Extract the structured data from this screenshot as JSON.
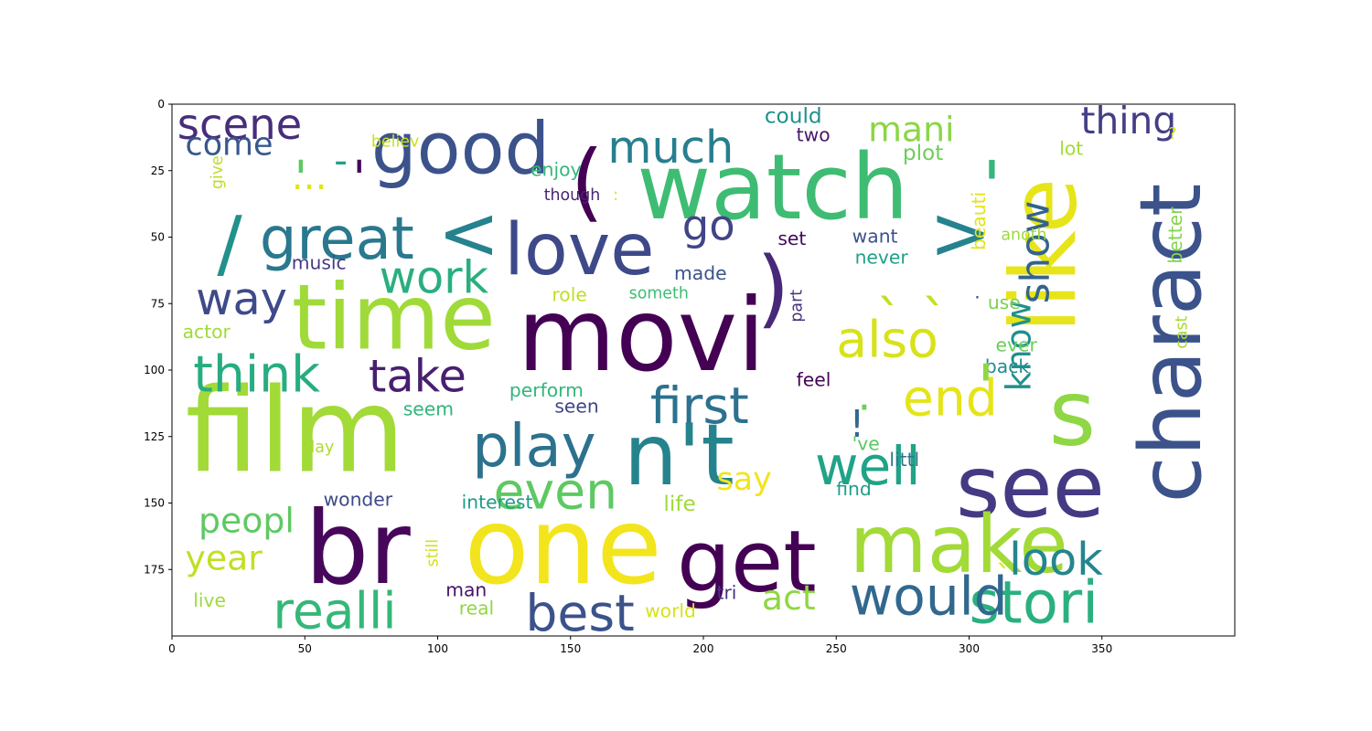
{
  "chart_data": {
    "type": "wordcloud",
    "title": "",
    "xlabel": "",
    "ylabel": "",
    "xlim": [
      0,
      400
    ],
    "ylim": [
      200,
      0
    ],
    "x_ticks": [
      "0",
      "50",
      "100",
      "150",
      "200",
      "250",
      "300",
      "350"
    ],
    "y_ticks": [
      "0",
      "25",
      "50",
      "75",
      "100",
      "125",
      "150",
      "175"
    ],
    "grid": false,
    "words": [
      {
        "text": "film",
        "x": 5,
        "y": 138,
        "size": 44,
        "color": "#a2da37",
        "orient": "h"
      },
      {
        "text": "br",
        "x": 50,
        "y": 180,
        "size": 38,
        "color": "#46075a",
        "orient": "h"
      },
      {
        "text": "one",
        "x": 110,
        "y": 180,
        "size": 40,
        "color": "#f2e51d",
        "orient": "h"
      },
      {
        "text": "movi",
        "x": 130,
        "y": 100,
        "size": 38,
        "color": "#440154",
        "orient": "h"
      },
      {
        "text": "time",
        "x": 45,
        "y": 92,
        "size": 34,
        "color": "#a0da39",
        "orient": "h"
      },
      {
        "text": "watch",
        "x": 175,
        "y": 43,
        "size": 34,
        "color": "#3fbc73",
        "orient": "h"
      },
      {
        "text": "like",
        "x": 340,
        "y": 86,
        "size": 34,
        "color": "#e7e419",
        "orient": "v"
      },
      {
        "text": "charact",
        "x": 387,
        "y": 150,
        "size": 32,
        "color": "#3b528b",
        "orient": "v"
      },
      {
        "text": "see",
        "x": 295,
        "y": 155,
        "size": 32,
        "color": "#443a83",
        "orient": "h"
      },
      {
        "text": "s",
        "x": 330,
        "y": 128,
        "size": 34,
        "color": "#8fd744",
        "orient": "h"
      },
      {
        "text": "n't",
        "x": 170,
        "y": 143,
        "size": 32,
        "color": "#25838e",
        "orient": "h"
      },
      {
        "text": "get",
        "x": 190,
        "y": 183,
        "size": 32,
        "color": "#440154",
        "orient": "h"
      },
      {
        "text": "make",
        "x": 255,
        "y": 176,
        "size": 30,
        "color": "#a2da37",
        "orient": "h"
      },
      {
        "text": "good",
        "x": 75,
        "y": 26,
        "size": 27,
        "color": "#3b528b",
        "orient": "h"
      },
      {
        "text": "love",
        "x": 125,
        "y": 64,
        "size": 27,
        "color": "#3e4989",
        "orient": "h"
      },
      {
        "text": "great",
        "x": 33,
        "y": 58,
        "size": 22,
        "color": "#2a788e",
        "orient": "h"
      },
      {
        "text": "(",
        "x": 150,
        "y": 40,
        "size": 32,
        "color": "#440154",
        "orient": "h"
      },
      {
        "text": ")",
        "x": 220,
        "y": 80,
        "size": 32,
        "color": "#482878",
        "orient": "h"
      },
      {
        "text": "<",
        "x": 100,
        "y": 58,
        "size": 28,
        "color": "#26828e",
        "orient": "h"
      },
      {
        "text": ">",
        "x": 285,
        "y": 58,
        "size": 28,
        "color": "#26828e",
        "orient": "h"
      },
      {
        "text": "/",
        "x": 17,
        "y": 62,
        "size": 28,
        "color": "#21918c",
        "orient": "h"
      },
      {
        "text": "stori",
        "x": 300,
        "y": 195,
        "size": 22,
        "color": "#2ab07f",
        "orient": "h"
      },
      {
        "text": "would",
        "x": 255,
        "y": 192,
        "size": 20,
        "color": "#31688e",
        "orient": "h"
      },
      {
        "text": "realli",
        "x": 38,
        "y": 197,
        "size": 19,
        "color": "#35b779",
        "orient": "h"
      },
      {
        "text": "best",
        "x": 133,
        "y": 198,
        "size": 19,
        "color": "#3b528b",
        "orient": "h"
      },
      {
        "text": "play",
        "x": 113,
        "y": 136,
        "size": 22,
        "color": "#2c728e",
        "orient": "h"
      },
      {
        "text": "even",
        "x": 121,
        "y": 152,
        "size": 19,
        "color": "#5ec962",
        "orient": "h"
      },
      {
        "text": "well",
        "x": 242,
        "y": 143,
        "size": 20,
        "color": "#20a386",
        "orient": "h"
      },
      {
        "text": "first",
        "x": 180,
        "y": 120,
        "size": 19,
        "color": "#2c728e",
        "orient": "h"
      },
      {
        "text": "think",
        "x": 8,
        "y": 108,
        "size": 19,
        "color": "#26ad81",
        "orient": "h"
      },
      {
        "text": "take",
        "x": 74,
        "y": 108,
        "size": 17,
        "color": "#481f70",
        "orient": "h"
      },
      {
        "text": "also",
        "x": 250,
        "y": 95,
        "size": 19,
        "color": "#d8e219",
        "orient": "h"
      },
      {
        "text": "end",
        "x": 275,
        "y": 117,
        "size": 19,
        "color": "#e5e419",
        "orient": "h"
      },
      {
        "text": "work",
        "x": 78,
        "y": 71,
        "size": 17,
        "color": "#29af7f",
        "orient": "h"
      },
      {
        "text": "way",
        "x": 9,
        "y": 79,
        "size": 17,
        "color": "#3e4a89",
        "orient": "h"
      },
      {
        "text": "much",
        "x": 164,
        "y": 22,
        "size": 17,
        "color": "#277f8e",
        "orient": "h"
      },
      {
        "text": "scene",
        "x": 2,
        "y": 13,
        "size": 16,
        "color": "#472d7b",
        "orient": "h"
      },
      {
        "text": "come",
        "x": 5,
        "y": 19,
        "size": 12,
        "color": "#38588c",
        "orient": "h"
      },
      {
        "text": "mani",
        "x": 262,
        "y": 14,
        "size": 13,
        "color": "#8bd646",
        "orient": "h"
      },
      {
        "text": "thing",
        "x": 342,
        "y": 11,
        "size": 14,
        "color": "#433e85",
        "orient": "h"
      },
      {
        "text": "show",
        "x": 330,
        "y": 75,
        "size": 15,
        "color": "#33638d",
        "orient": "v"
      },
      {
        "text": "know",
        "x": 323,
        "y": 108,
        "size": 13,
        "color": "#21908d",
        "orient": "v"
      },
      {
        "text": "look",
        "x": 315,
        "y": 177,
        "size": 17,
        "color": "#24868e",
        "orient": "h"
      },
      {
        "text": "go",
        "x": 192,
        "y": 51,
        "size": 16,
        "color": "#414487",
        "orient": "h"
      },
      {
        "text": "peopl",
        "x": 10,
        "y": 161,
        "size": 13,
        "color": "#5ec962",
        "orient": "h"
      },
      {
        "text": "year",
        "x": 5,
        "y": 175,
        "size": 13,
        "color": "#c2df23",
        "orient": "h"
      },
      {
        "text": "act",
        "x": 222,
        "y": 190,
        "size": 13,
        "color": "#90d743",
        "orient": "h"
      },
      {
        "text": "say",
        "x": 205,
        "y": 145,
        "size": 12,
        "color": "#f1e51d",
        "orient": "h"
      },
      {
        "text": "!",
        "x": 255,
        "y": 125,
        "size": 14,
        "color": "#31688e",
        "orient": "h"
      },
      {
        "text": "could",
        "x": 223,
        "y": 7,
        "size": 8,
        "color": "#21908d",
        "orient": "h"
      },
      {
        "text": "two",
        "x": 235,
        "y": 14,
        "size": 7,
        "color": "#48186a",
        "orient": "h"
      },
      {
        "text": "believ",
        "x": 75,
        "y": 16,
        "size": 6,
        "color": "#c8e020",
        "orient": "h"
      },
      {
        "text": "enjoy",
        "x": 135,
        "y": 27,
        "size": 7,
        "color": "#35b779",
        "orient": "h"
      },
      {
        "text": "though",
        "x": 140,
        "y": 36,
        "size": 6,
        "color": "#482475",
        "orient": "h"
      },
      {
        "text": "plot",
        "x": 275,
        "y": 21,
        "size": 8,
        "color": "#6ece58",
        "orient": "h"
      },
      {
        "text": "lot",
        "x": 334,
        "y": 19,
        "size": 7,
        "color": "#a5db36",
        "orient": "h"
      },
      {
        "text": "give",
        "x": 19,
        "y": 32,
        "size": 6,
        "color": "#bddf26",
        "orient": "v"
      },
      {
        "text": "set",
        "x": 228,
        "y": 53,
        "size": 7,
        "color": "#46085c",
        "orient": "h"
      },
      {
        "text": "want",
        "x": 256,
        "y": 52,
        "size": 7,
        "color": "#3b528b",
        "orient": "h"
      },
      {
        "text": "never",
        "x": 257,
        "y": 60,
        "size": 7,
        "color": "#1fa088",
        "orient": "h"
      },
      {
        "text": "beauti",
        "x": 306,
        "y": 55,
        "size": 7,
        "color": "#e2e418",
        "orient": "v"
      },
      {
        "text": "anoth",
        "x": 312,
        "y": 51,
        "size": 6,
        "color": "#9bd93c",
        "orient": "h"
      },
      {
        "text": "better",
        "x": 380,
        "y": 60,
        "size": 7,
        "color": "#84d44b",
        "orient": "v"
      },
      {
        "text": "cast",
        "x": 382,
        "y": 92,
        "size": 6,
        "color": "#a8db34",
        "orient": "v"
      },
      {
        "text": "music",
        "x": 45,
        "y": 62,
        "size": 7,
        "color": "#443983",
        "orient": "h"
      },
      {
        "text": "made",
        "x": 189,
        "y": 66,
        "size": 7,
        "color": "#3b528b",
        "orient": "h"
      },
      {
        "text": "role",
        "x": 143,
        "y": 74,
        "size": 7,
        "color": "#bfdf25",
        "orient": "h"
      },
      {
        "text": "someth",
        "x": 172,
        "y": 73,
        "size": 6,
        "color": "#3dbc74",
        "orient": "h"
      },
      {
        "text": "part",
        "x": 237,
        "y": 82,
        "size": 6,
        "color": "#46307e",
        "orient": "v"
      },
      {
        "text": "use",
        "x": 307,
        "y": 77,
        "size": 7,
        "color": "#7ad151",
        "orient": "h"
      },
      {
        "text": "actor",
        "x": 4,
        "y": 88,
        "size": 7,
        "color": "#a0da39",
        "orient": "h"
      },
      {
        "text": "ever",
        "x": 310,
        "y": 93,
        "size": 7,
        "color": "#6ccd5a",
        "orient": "h"
      },
      {
        "text": "back",
        "x": 306,
        "y": 101,
        "size": 7,
        "color": "#238a8d",
        "orient": "h"
      },
      {
        "text": "perform",
        "x": 127,
        "y": 110,
        "size": 7,
        "color": "#32b67a",
        "orient": "h"
      },
      {
        "text": "feel",
        "x": 235,
        "y": 106,
        "size": 7,
        "color": "#450457",
        "orient": "h"
      },
      {
        "text": "seem",
        "x": 87,
        "y": 117,
        "size": 7,
        "color": "#31b57b",
        "orient": "h"
      },
      {
        "text": "seen",
        "x": 144,
        "y": 116,
        "size": 7,
        "color": "#404688",
        "orient": "h"
      },
      {
        "text": "'ve",
        "x": 256,
        "y": 130,
        "size": 7,
        "color": "#5cc863",
        "orient": "h"
      },
      {
        "text": "littl",
        "x": 270,
        "y": 136,
        "size": 7,
        "color": "#2b748e",
        "orient": "h"
      },
      {
        "text": "day",
        "x": 50,
        "y": 131,
        "size": 6,
        "color": "#addc30",
        "orient": "h"
      },
      {
        "text": "wonder",
        "x": 57,
        "y": 151,
        "size": 7,
        "color": "#3e4989",
        "orient": "h"
      },
      {
        "text": "interest",
        "x": 109,
        "y": 152,
        "size": 7,
        "color": "#1e9c89",
        "orient": "h"
      },
      {
        "text": "life",
        "x": 185,
        "y": 153,
        "size": 8,
        "color": "#a0da39",
        "orient": "h"
      },
      {
        "text": "find",
        "x": 250,
        "y": 147,
        "size": 7,
        "color": "#1f9e89",
        "orient": "h"
      },
      {
        "text": "still",
        "x": 100,
        "y": 174,
        "size": 6,
        "color": "#d0e11c",
        "orient": "v"
      },
      {
        "text": "man",
        "x": 103,
        "y": 185,
        "size": 7,
        "color": "#481467",
        "orient": "h"
      },
      {
        "text": "real",
        "x": 108,
        "y": 192,
        "size": 7,
        "color": "#90d743",
        "orient": "h"
      },
      {
        "text": "tri",
        "x": 205,
        "y": 186,
        "size": 7,
        "color": "#453581",
        "orient": "h"
      },
      {
        "text": "world",
        "x": 178,
        "y": 193,
        "size": 7,
        "color": "#d8e219",
        "orient": "h"
      },
      {
        "text": "live",
        "x": 8,
        "y": 189,
        "size": 7,
        "color": "#9fda3a",
        "orient": "h"
      },
      {
        "text": "?",
        "x": 375,
        "y": 13,
        "size": 6,
        "color": "#cae11f",
        "orient": "h"
      },
      {
        "text": ":",
        "x": 166,
        "y": 36,
        "size": 6,
        "color": "#d8e219",
        "orient": "h"
      },
      {
        "text": "...",
        "x": 45,
        "y": 32,
        "size": 14,
        "color": "#e2e418",
        "orient": "h"
      },
      {
        "text": "-",
        "x": 61,
        "y": 26,
        "size": 14,
        "color": "#1fa187",
        "orient": "h"
      },
      {
        "text": "'",
        "x": 305,
        "y": 40,
        "size": 26,
        "color": "#35b779",
        "orient": "h"
      },
      {
        "text": "'",
        "x": 303,
        "y": 115,
        "size": 24,
        "color": "#8fd744",
        "orient": "h"
      },
      {
        "text": "'",
        "x": 46,
        "y": 34,
        "size": 18,
        "color": "#5ec962",
        "orient": "h"
      },
      {
        "text": "'",
        "x": 68,
        "y": 34,
        "size": 18,
        "color": "#46075a",
        "orient": "h"
      },
      {
        "text": "`",
        "x": 265,
        "y": 88,
        "size": 20,
        "color": "#c2df23",
        "orient": "h"
      },
      {
        "text": "`",
        "x": 282,
        "y": 88,
        "size": 20,
        "color": "#c2df23",
        "orient": "h"
      },
      {
        "text": "`",
        "x": 310,
        "y": 182,
        "size": 12,
        "color": "#e5e419",
        "orient": "h"
      },
      {
        "text": ".",
        "x": 258,
        "y": 115,
        "size": 16,
        "color": "#6ece58",
        "orient": "h"
      },
      {
        "text": ".",
        "x": 302,
        "y": 73,
        "size": 7,
        "color": "#414487",
        "orient": "h"
      }
    ]
  }
}
